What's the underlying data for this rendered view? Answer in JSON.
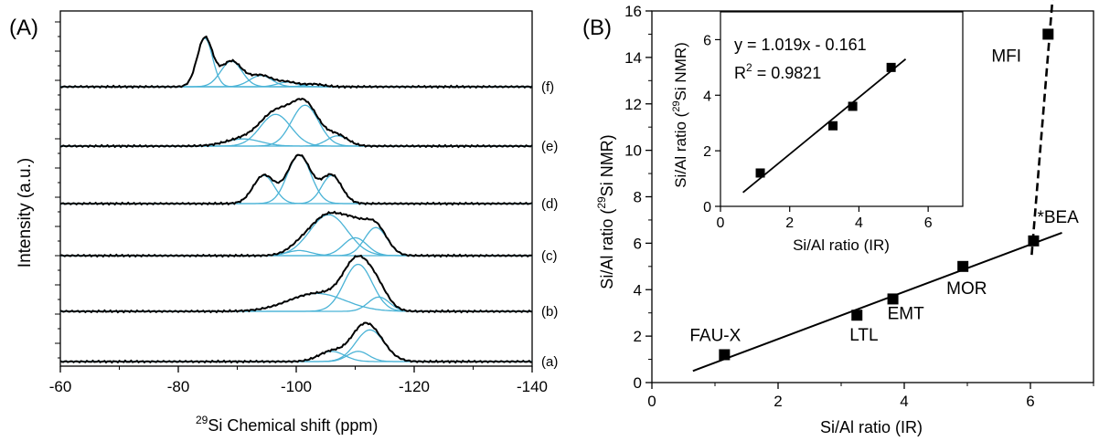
{
  "panel_a_label": "(A)",
  "panel_b_label": "(B)",
  "colors": {
    "experimental": "#000000",
    "deconvolution": "#4ab3d6",
    "fit": "#000000"
  },
  "chart_data": [
    {
      "type": "line",
      "panel": "(A)",
      "xlabel_superscript": "29",
      "xlabel": "Si Chemical shift (ppm)",
      "ylabel": "Intensity (a.u.)",
      "x_ticks": [
        "-60",
        "-80",
        "-100",
        "-120",
        "-140"
      ],
      "xlim": [
        -60,
        -140
      ],
      "x_reversed": true,
      "grid": false,
      "spectra": [
        {
          "name": "(f)",
          "peaks": [
            {
              "center": -84.5,
              "height": 0.95,
              "width": 1.3
            },
            {
              "center": -89.0,
              "height": 0.5,
              "width": 1.8
            },
            {
              "center": -94.0,
              "height": 0.22,
              "width": 1.9
            },
            {
              "center": -98.5,
              "height": 0.09,
              "width": 1.7
            },
            {
              "center": -103.0,
              "height": 0.05,
              "width": 1.6
            }
          ]
        },
        {
          "name": "(e)",
          "peaks": [
            {
              "center": -91.0,
              "height": 0.14,
              "width": 3.0
            },
            {
              "center": -96.5,
              "height": 0.62,
              "width": 2.6
            },
            {
              "center": -101.5,
              "height": 0.8,
              "width": 2.3
            },
            {
              "center": -107.0,
              "height": 0.2,
              "width": 1.8
            }
          ]
        },
        {
          "name": "(d)",
          "peaks": [
            {
              "center": -94.5,
              "height": 0.55,
              "width": 1.8
            },
            {
              "center": -100.5,
              "height": 0.95,
              "width": 2.0
            },
            {
              "center": -106.0,
              "height": 0.55,
              "width": 1.7
            }
          ]
        },
        {
          "name": "(c)",
          "peaks": [
            {
              "center": -100.5,
              "height": 0.1,
              "width": 2.0
            },
            {
              "center": -105.5,
              "height": 0.8,
              "width": 3.2
            },
            {
              "center": -110.0,
              "height": 0.35,
              "width": 2.0
            },
            {
              "center": -113.5,
              "height": 0.55,
              "width": 1.9
            }
          ]
        },
        {
          "name": "(b)",
          "peaks": [
            {
              "center": -103.5,
              "height": 0.35,
              "width": 4.8
            },
            {
              "center": -110.5,
              "height": 0.92,
              "width": 2.4
            },
            {
              "center": -114.0,
              "height": 0.28,
              "width": 1.8
            }
          ]
        },
        {
          "name": "(a)",
          "peaks": [
            {
              "center": -106.0,
              "height": 0.2,
              "width": 2.2
            },
            {
              "center": -110.5,
              "height": 0.2,
              "width": 1.8
            },
            {
              "center": -112.5,
              "height": 0.62,
              "width": 2.4
            }
          ]
        }
      ]
    },
    {
      "type": "scatter",
      "panel": "(B)",
      "xlabel": "Si/Al ratio (IR)",
      "ylabel_prefix": "Si/Al ratio (",
      "ylabel_superscript": "29",
      "ylabel_suffix": "Si NMR)",
      "x_ticks": [
        "0",
        "2",
        "4",
        "6"
      ],
      "y_ticks": [
        "0",
        "2",
        "4",
        "6",
        "8",
        "10",
        "12",
        "14",
        "16"
      ],
      "xlim": [
        0,
        7
      ],
      "ylim": [
        0,
        16
      ],
      "grid": false,
      "points": [
        {
          "label": "FAU-X",
          "x": 1.15,
          "y": 1.2
        },
        {
          "label": "LTL",
          "x": 3.25,
          "y": 2.9
        },
        {
          "label": "EMT",
          "x": 3.82,
          "y": 3.6
        },
        {
          "label": "MOR",
          "x": 4.93,
          "y": 5.0
        },
        {
          "label": "*BEA",
          "x": 6.05,
          "y": 6.1
        },
        {
          "label": "MFI",
          "x": 6.28,
          "y": 15.0
        }
      ],
      "fit_line": {
        "x": [
          0.65,
          6.5
        ],
        "y": [
          0.5,
          6.45
        ]
      },
      "dashed_line": {
        "x": [
          6.02,
          6.35
        ],
        "y": [
          5.5,
          16.5
        ]
      }
    },
    {
      "type": "scatter",
      "panel": "inset",
      "xlabel": "Si/Al ratio (IR)",
      "ylabel_prefix": "Si/Al ratio (",
      "ylabel_superscript": "29",
      "ylabel_suffix": "Si NMR)",
      "x_ticks": [
        "0",
        "2",
        "4",
        "6"
      ],
      "y_ticks": [
        "0",
        "2",
        "4",
        "6"
      ],
      "xlim": [
        0,
        7
      ],
      "ylim": [
        0,
        7
      ],
      "equation": "y = 1.019x - 0.161",
      "r2_prefix": "R",
      "r2_superscript": "2",
      "r2_suffix": " = 0.9821",
      "points": [
        {
          "x": 1.15,
          "y": 1.2
        },
        {
          "x": 3.25,
          "y": 2.9
        },
        {
          "x": 3.82,
          "y": 3.6
        },
        {
          "x": 4.93,
          "y": 5.0
        }
      ],
      "fit_line": {
        "x": [
          0.65,
          5.35
        ],
        "y": [
          0.5,
          5.3
        ]
      }
    }
  ]
}
